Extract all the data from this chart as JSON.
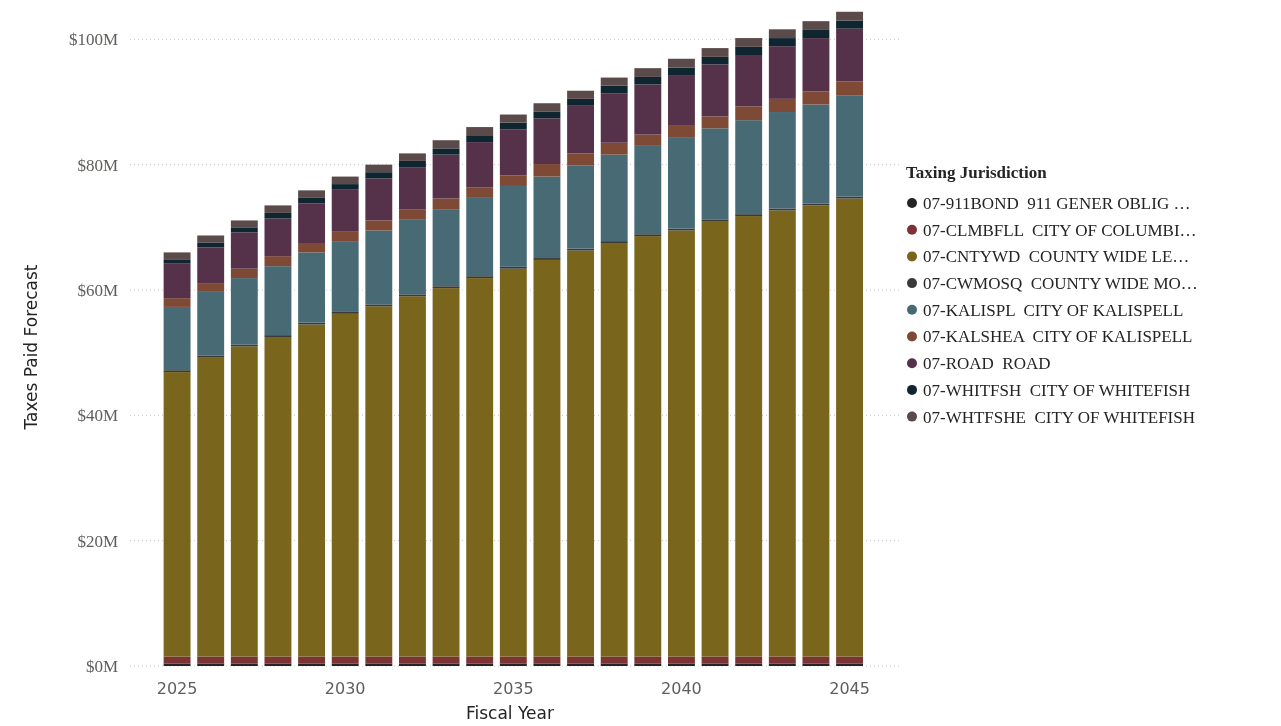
{
  "chart_data": {
    "type": "bar",
    "stacked": true,
    "xlabel": "Fiscal Year",
    "ylabel": "Taxes Paid Forecast",
    "legend_title": "Taxing Jurisdiction",
    "legend": "right",
    "grid": "y",
    "x": [
      2025,
      2026,
      2027,
      2028,
      2029,
      2030,
      2031,
      2032,
      2033,
      2034,
      2035,
      2036,
      2037,
      2038,
      2039,
      2040,
      2041,
      2042,
      2043,
      2044,
      2045
    ],
    "xlim": [
      2023.6,
      2046.5
    ],
    "xticks": [
      2025,
      2030,
      2035,
      2040,
      2045
    ],
    "ylim": [
      0,
      105
    ],
    "yticks": [
      {
        "value": 0,
        "label": "$0M"
      },
      {
        "value": 20,
        "label": "$20M"
      },
      {
        "value": 40,
        "label": "$40M"
      },
      {
        "value": 60,
        "label": "$60M"
      },
      {
        "value": 80,
        "label": "$80M"
      },
      {
        "value": 100,
        "label": "$100M"
      }
    ],
    "series": [
      {
        "name": "07-911BOND  911 GENER OBLIG …",
        "color": "#252423",
        "values": [
          0.4,
          0.4,
          0.4,
          0.4,
          0.4,
          0.4,
          0.4,
          0.4,
          0.4,
          0.4,
          0.4,
          0.4,
          0.4,
          0.4,
          0.4,
          0.4,
          0.4,
          0.4,
          0.4,
          0.4,
          0.4
        ]
      },
      {
        "name": "07-CLMBFLL  CITY OF COLUMBI…",
        "color": "#7d3236",
        "values": [
          1.1,
          1.1,
          1.1,
          1.1,
          1.1,
          1.1,
          1.1,
          1.1,
          1.1,
          1.1,
          1.1,
          1.1,
          1.1,
          1.1,
          1.1,
          1.1,
          1.1,
          1.1,
          1.1,
          1.1,
          1.1
        ]
      },
      {
        "name": "07-CNTYWD  COUNTY WIDE LE…",
        "color": "#7a651c",
        "values": [
          45.4,
          47.7,
          49.5,
          51.0,
          53.0,
          54.7,
          55.9,
          57.5,
          58.8,
          60.4,
          61.9,
          63.3,
          64.8,
          66.0,
          67.1,
          68.0,
          69.4,
          70.3,
          71.2,
          72.0,
          73.1
        ]
      },
      {
        "name": "07-CWMOSQ  COUNTY WIDE MO…",
        "color": "#3a3a3a",
        "values": [
          0.3,
          0.3,
          0.3,
          0.3,
          0.3,
          0.3,
          0.3,
          0.3,
          0.3,
          0.3,
          0.3,
          0.3,
          0.3,
          0.3,
          0.3,
          0.3,
          0.3,
          0.3,
          0.3,
          0.3,
          0.3
        ]
      },
      {
        "name": "07-KALISPL  CITY OF KALISPELL",
        "color": "#476a75",
        "values": [
          10.1,
          10.2,
          10.6,
          11.0,
          11.2,
          11.3,
          11.8,
          11.9,
          12.3,
          12.5,
          12.9,
          13.0,
          13.3,
          13.8,
          14.1,
          14.6,
          14.6,
          15.0,
          15.4,
          15.8,
          16.1
        ]
      },
      {
        "name": "07-KALSHEA  CITY OF KALISPELL",
        "color": "#7f4a35",
        "values": [
          1.4,
          1.4,
          1.5,
          1.6,
          1.5,
          1.6,
          1.6,
          1.7,
          1.7,
          1.7,
          1.7,
          2.0,
          1.9,
          1.9,
          1.8,
          1.8,
          1.9,
          2.2,
          2.1,
          2.1,
          2.3
        ]
      },
      {
        "name": "07-ROAD  ROAD",
        "color": "#553249",
        "values": [
          5.5,
          5.7,
          5.8,
          6.0,
          6.3,
          6.6,
          6.7,
          6.7,
          7.0,
          7.2,
          7.3,
          7.3,
          7.6,
          7.9,
          8.0,
          8.1,
          8.3,
          8.2,
          8.4,
          8.5,
          8.4
        ]
      },
      {
        "name": "07-WHITFSH  CITY OF WHITEFISH",
        "color": "#0f2630",
        "values": [
          0.7,
          0.8,
          0.8,
          0.9,
          0.9,
          0.9,
          1.0,
          1.0,
          1.0,
          1.1,
          1.1,
          1.1,
          1.1,
          1.2,
          1.2,
          1.2,
          1.2,
          1.3,
          1.3,
          1.3,
          1.3
        ]
      },
      {
        "name": "07-WHTFSHE  CITY OF WHITEFISH",
        "color": "#5a4a4a",
        "values": [
          1.1,
          1.1,
          1.1,
          1.2,
          1.2,
          1.2,
          1.2,
          1.2,
          1.3,
          1.3,
          1.3,
          1.3,
          1.3,
          1.3,
          1.4,
          1.4,
          1.4,
          1.4,
          1.4,
          1.4,
          1.4
        ]
      }
    ]
  }
}
